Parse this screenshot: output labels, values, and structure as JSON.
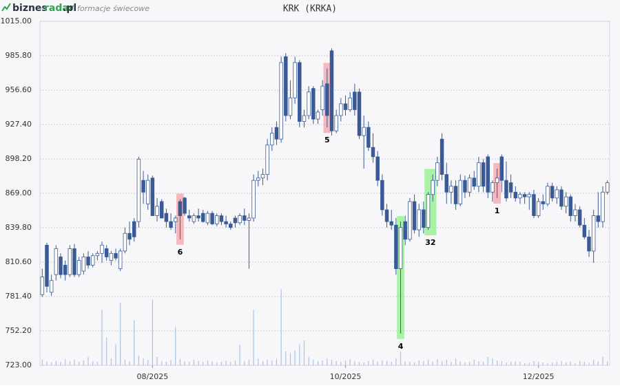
{
  "header": {
    "logo_main": "biznes",
    "logo_accent": "radar",
    "logo_tld": ".pl",
    "subtitle": "formacje świecowe"
  },
  "chart_data": {
    "type": "candlestick",
    "title": "KRK (KRKA)",
    "up_color": "#ffffff",
    "down_color": "#3a5a96",
    "volume_color": "#a9c4e6",
    "grid": true,
    "ylim": [
      723,
      1015
    ],
    "yticks": [
      {
        "value": 723,
        "label": "723.00"
      },
      {
        "value": 752.2,
        "label": "752.20"
      },
      {
        "value": 781.4,
        "label": "781.40"
      },
      {
        "value": 810.6,
        "label": "810.60"
      },
      {
        "value": 839.8,
        "label": "839.80"
      },
      {
        "value": 869,
        "label": "869.00"
      },
      {
        "value": 898.2,
        "label": "898.20"
      },
      {
        "value": 927.4,
        "label": "927.40"
      },
      {
        "value": 956.6,
        "label": "956.60"
      },
      {
        "value": 985.8,
        "label": "985.80"
      },
      {
        "value": 1015,
        "label": "1015.00"
      }
    ],
    "xlabels": [
      {
        "index": 24,
        "label": "08/2025"
      },
      {
        "index": 66,
        "label": "10/2025"
      },
      {
        "index": 108,
        "label": "12/2025"
      }
    ],
    "candles": [
      [
        783,
        805,
        781,
        798
      ],
      [
        825,
        827,
        785,
        790
      ],
      [
        785,
        800,
        782,
        795
      ],
      [
        800,
        825,
        795,
        822
      ],
      [
        815,
        818,
        797,
        800
      ],
      [
        808,
        812,
        795,
        800
      ],
      [
        800,
        825,
        798,
        822
      ],
      [
        822,
        826,
        798,
        800
      ],
      [
        800,
        815,
        798,
        812
      ],
      [
        803,
        818,
        800,
        815
      ],
      [
        815,
        820,
        805,
        808
      ],
      [
        808,
        818,
        806,
        816
      ],
      [
        816,
        820,
        812,
        818
      ],
      [
        818,
        828,
        810,
        825
      ],
      [
        822,
        825,
        812,
        815
      ],
      [
        812,
        820,
        808,
        818
      ],
      [
        818,
        822,
        812,
        814
      ],
      [
        805,
        822,
        803,
        820
      ],
      [
        820,
        840,
        818,
        835
      ],
      [
        835,
        845,
        825,
        830
      ],
      [
        845,
        848,
        828,
        832
      ],
      [
        845,
        900,
        840,
        898
      ],
      [
        880,
        888,
        860,
        870
      ],
      [
        860,
        885,
        855,
        880
      ],
      [
        882,
        884,
        850,
        850
      ],
      [
        850,
        865,
        845,
        858
      ],
      [
        862,
        864,
        848,
        848
      ],
      [
        852,
        856,
        840,
        845
      ],
      [
        845,
        852,
        838,
        840
      ],
      [
        845,
        850,
        835,
        848
      ],
      [
        862,
        864,
        830,
        850
      ],
      [
        865,
        866,
        850,
        852
      ],
      [
        850,
        855,
        845,
        848
      ],
      [
        845,
        852,
        843,
        850
      ],
      [
        850,
        856,
        845,
        848
      ],
      [
        852,
        855,
        844,
        845
      ],
      [
        844,
        854,
        842,
        852
      ],
      [
        852,
        854,
        842,
        843
      ],
      [
        843,
        852,
        841,
        850
      ],
      [
        850,
        852,
        842,
        845
      ],
      [
        845,
        850,
        840,
        843
      ],
      [
        843,
        845,
        838,
        840
      ],
      [
        848,
        850,
        840,
        844
      ],
      [
        844,
        852,
        842,
        850
      ],
      [
        850,
        856,
        842,
        846
      ],
      [
        846,
        852,
        805,
        848
      ],
      [
        848,
        885,
        845,
        880
      ],
      [
        880,
        888,
        875,
        882
      ],
      [
        882,
        890,
        876,
        885
      ],
      [
        885,
        915,
        880,
        910
      ],
      [
        910,
        925,
        905,
        920
      ],
      [
        925,
        930,
        910,
        915
      ],
      [
        915,
        985,
        912,
        980
      ],
      [
        985,
        988,
        930,
        935
      ],
      [
        935,
        965,
        932,
        950
      ],
      [
        950,
        985,
        945,
        980
      ],
      [
        980,
        982,
        925,
        930
      ],
      [
        930,
        940,
        925,
        935
      ],
      [
        935,
        960,
        932,
        955
      ],
      [
        958,
        960,
        928,
        932
      ],
      [
        932,
        940,
        928,
        938
      ],
      [
        940,
        965,
        935,
        960
      ],
      [
        962,
        975,
        925,
        935
      ],
      [
        990,
        992,
        918,
        922
      ],
      [
        922,
        940,
        920,
        935
      ],
      [
        935,
        950,
        930,
        945
      ],
      [
        945,
        952,
        935,
        940
      ],
      [
        940,
        955,
        938,
        950
      ],
      [
        955,
        962,
        935,
        940
      ],
      [
        955,
        958,
        915,
        918
      ],
      [
        918,
        935,
        890,
        925
      ],
      [
        925,
        930,
        905,
        908
      ],
      [
        908,
        920,
        895,
        900
      ],
      [
        900,
        905,
        875,
        880
      ],
      [
        880,
        885,
        850,
        855
      ],
      [
        855,
        860,
        840,
        845
      ],
      [
        845,
        855,
        838,
        842
      ],
      [
        842,
        848,
        800,
        805
      ],
      [
        805,
        845,
        750,
        840
      ],
      [
        845,
        850,
        825,
        830
      ],
      [
        830,
        865,
        828,
        862
      ],
      [
        862,
        868,
        835,
        838
      ],
      [
        838,
        860,
        832,
        855
      ],
      [
        855,
        862,
        835,
        840
      ],
      [
        840,
        870,
        838,
        868
      ],
      [
        868,
        885,
        862,
        880
      ],
      [
        880,
        900,
        875,
        895
      ],
      [
        915,
        920,
        880,
        885
      ],
      [
        885,
        895,
        860,
        870
      ],
      [
        870,
        880,
        860,
        875
      ],
      [
        875,
        880,
        855,
        860
      ],
      [
        860,
        885,
        858,
        880
      ],
      [
        880,
        884,
        865,
        870
      ],
      [
        870,
        885,
        866,
        882
      ],
      [
        882,
        888,
        872,
        875
      ],
      [
        875,
        900,
        870,
        895
      ],
      [
        895,
        898,
        870,
        875
      ],
      [
        900,
        902,
        865,
        870
      ],
      [
        870,
        880,
        862,
        878
      ],
      [
        878,
        890,
        865,
        882
      ],
      [
        900,
        902,
        870,
        880
      ],
      [
        880,
        896,
        862,
        865
      ],
      [
        878,
        885,
        865,
        870
      ],
      [
        870,
        875,
        862,
        865
      ],
      [
        865,
        870,
        860,
        868
      ],
      [
        868,
        870,
        860,
        866
      ],
      [
        866,
        870,
        855,
        868
      ],
      [
        868,
        872,
        848,
        850
      ],
      [
        850,
        865,
        848,
        862
      ],
      [
        862,
        868,
        855,
        860
      ],
      [
        860,
        878,
        858,
        875
      ],
      [
        875,
        878,
        862,
        865
      ],
      [
        865,
        875,
        860,
        872
      ],
      [
        872,
        875,
        855,
        858
      ],
      [
        858,
        870,
        852,
        866
      ],
      [
        866,
        868,
        845,
        850
      ],
      [
        850,
        860,
        845,
        855
      ],
      [
        855,
        858,
        840,
        842
      ],
      [
        842,
        848,
        830,
        832
      ],
      [
        832,
        838,
        815,
        820
      ],
      [
        820,
        855,
        810,
        850
      ],
      [
        850,
        870,
        840,
        845
      ],
      [
        845,
        875,
        840,
        870
      ],
      [
        870,
        880,
        868,
        878
      ]
    ],
    "volume": [
      8,
      5,
      4,
      6,
      5,
      9,
      6,
      8,
      5,
      7,
      12,
      6,
      5,
      80,
      40,
      10,
      30,
      90,
      8,
      6,
      65,
      14,
      10,
      8,
      95,
      12,
      6,
      5,
      8,
      55,
      9,
      6,
      5,
      8,
      6,
      5,
      7,
      6,
      4,
      5,
      6,
      5,
      7,
      30,
      6,
      8,
      80,
      10,
      6,
      8,
      7,
      9,
      110,
      20,
      18,
      22,
      30,
      36,
      12,
      8,
      6,
      7,
      10,
      8,
      6,
      5,
      7,
      9,
      6,
      5,
      4,
      6,
      8,
      5,
      7,
      6,
      5,
      10,
      20,
      6,
      5,
      4,
      7,
      6,
      8,
      5,
      9,
      6,
      8,
      5,
      10,
      6,
      4,
      5,
      8,
      6,
      5,
      12,
      10,
      7,
      6,
      4,
      5,
      6,
      5,
      3,
      4,
      6,
      5,
      4,
      3,
      4,
      5,
      6,
      4,
      5,
      3,
      6,
      5,
      4,
      8,
      6,
      12,
      6
    ],
    "patterns": [
      {
        "label": "6",
        "start": 30,
        "end": 30,
        "color": "#f4a3a8"
      },
      {
        "label": "5",
        "start": 62,
        "end": 62,
        "color": "#f4a3a8"
      },
      {
        "label": "4",
        "start": 78,
        "end": 78,
        "color": "#8ff08a"
      },
      {
        "label": "32",
        "start": 84,
        "end": 85,
        "color": "#8ff08a"
      },
      {
        "label": "1",
        "start": 99,
        "end": 99,
        "color": "#f4a3a8"
      }
    ]
  }
}
